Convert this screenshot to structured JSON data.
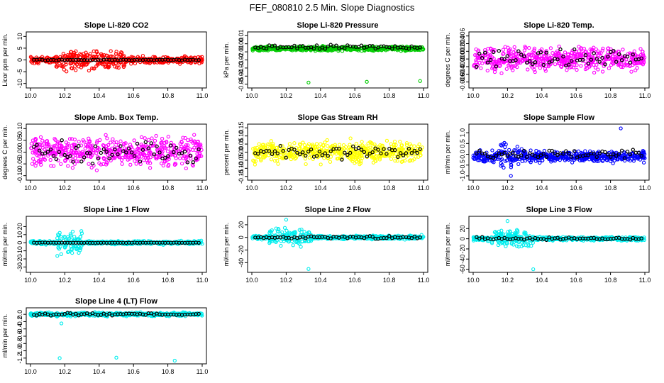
{
  "page": {
    "title": "FEF_080810  2.5 Min. Slope Diagnostics"
  },
  "chart_data": [
    {
      "type": "scatter",
      "title": "Slope Li-820 CO2",
      "ylabel": "Licor ppm per min.",
      "xlim": [
        10.0,
        11.0
      ],
      "ylim": [
        -11,
        11
      ],
      "xticks": [
        "10.0",
        "10.2",
        "10.4",
        "10.6",
        "10.8",
        "11.0"
      ],
      "yticks": [
        {
          "v": -10,
          "label": "-10"
        },
        {
          "v": -5,
          "label": "-5"
        },
        {
          "v": 0,
          "label": "0"
        },
        {
          "v": 5,
          "label": "5"
        },
        {
          "v": 10,
          "label": "10"
        }
      ],
      "series_color": "#ff0000",
      "noise": {
        "center": 0,
        "spread": 2.2,
        "burst_from": 10.15,
        "burst_to": 10.55,
        "burst_spread": 5.5
      },
      "black_center": 0,
      "black_spread": 0.3
    },
    {
      "type": "scatter",
      "title": "Slope Li-820 Pressure",
      "ylabel": "kPa per min.",
      "xlim": [
        10.0,
        11.0
      ],
      "ylim": [
        -0.052,
        0.012
      ],
      "xticks": [
        "10.0",
        "10.2",
        "10.4",
        "10.6",
        "10.8",
        "11.0"
      ],
      "yticks": [
        {
          "v": -0.05,
          "label": "-0.05"
        },
        {
          "v": -0.04,
          "label": "-0.04"
        },
        {
          "v": -0.03,
          "label": "-0.03"
        },
        {
          "v": -0.02,
          "label": "-0.02"
        },
        {
          "v": -0.01,
          "label": "-0.01"
        },
        {
          "v": 0.0,
          "label": "0.00"
        },
        {
          "v": 0.01,
          "label": "0.01"
        }
      ],
      "series_color": "#00cc00",
      "noise": {
        "center": -0.006,
        "spread": 0.004,
        "burst_from": 10.0,
        "burst_to": 10.0,
        "burst_spread": 0.004
      },
      "black_center": -0.004,
      "black_spread": 0.004,
      "outliers": [
        [
          10.33,
          -0.048
        ],
        [
          10.67,
          -0.047
        ],
        [
          10.98,
          -0.046
        ]
      ]
    },
    {
      "type": "scatter",
      "title": "Slope Li-820 Temp.",
      "ylabel": "degrees C per min.",
      "xlim": [
        10.0,
        11.0
      ],
      "ylim": [
        -0.007,
        0.0065
      ],
      "xticks": [
        "10.0",
        "10.2",
        "10.4",
        "10.6",
        "10.8",
        "11.0"
      ],
      "yticks": [
        {
          "v": -0.006,
          "label": "-0.006"
        },
        {
          "v": -0.004,
          "label": "-0.004"
        },
        {
          "v": -0.002,
          "label": "-0.002"
        },
        {
          "v": 0.0,
          "label": "0.000"
        },
        {
          "v": 0.002,
          "label": "0.002"
        },
        {
          "v": 0.004,
          "label": "0.004"
        },
        {
          "v": 0.006,
          "label": "0.006"
        }
      ],
      "series_color": "#ff00ff",
      "noise": {
        "center": 0.0,
        "spread": 0.0042,
        "burst_from": 10.0,
        "burst_to": 10.0,
        "burst_spread": 0.0042
      },
      "black_center": 0.0,
      "black_spread": 0.0035
    },
    {
      "type": "scatter",
      "title": "Slope Amb. Box Temp.",
      "ylabel": "degrees C per min.",
      "xlim": [
        10.0,
        11.0
      ],
      "ylim": [
        -0.11,
        0.11
      ],
      "xticks": [
        "10.0",
        "10.2",
        "10.4",
        "10.6",
        "10.8",
        "11.0"
      ],
      "yticks": [
        {
          "v": -0.1,
          "label": "-0.10"
        },
        {
          "v": -0.05,
          "label": "-0.05"
        },
        {
          "v": 0.0,
          "label": "0.00"
        },
        {
          "v": 0.05,
          "label": "0.05"
        },
        {
          "v": 0.1,
          "label": "0.10"
        }
      ],
      "series_color": "#ff00ff",
      "noise": {
        "center": 0.0,
        "spread": 0.085,
        "burst_from": 10.0,
        "burst_to": 10.0,
        "burst_spread": 0.085
      },
      "black_center": 0.0,
      "black_spread": 0.07
    },
    {
      "type": "scatter",
      "title": "Slope Gas Stream RH",
      "ylabel": "percent per min.",
      "xlim": [
        10.0,
        11.0
      ],
      "ylim": [
        -0.16,
        0.16
      ],
      "xticks": [
        "10.0",
        "10.2",
        "10.4",
        "10.6",
        "10.8",
        "11.0"
      ],
      "yticks": [
        {
          "v": -0.15,
          "label": "-0.15"
        },
        {
          "v": -0.1,
          "label": "-0.10"
        },
        {
          "v": -0.05,
          "label": "-0.05"
        },
        {
          "v": 0.0,
          "label": "0.00"
        },
        {
          "v": 0.05,
          "label": "0.05"
        },
        {
          "v": 0.1,
          "label": "0.10"
        },
        {
          "v": 0.15,
          "label": "0.15"
        }
      ],
      "series_color": "#ffff00",
      "noise": {
        "center": 0.0,
        "spread": 0.09,
        "burst_from": 10.0,
        "burst_to": 10.0,
        "burst_spread": 0.09
      },
      "black_center": 0.0,
      "black_spread": 0.06
    },
    {
      "type": "scatter",
      "title": "Slope Sample Flow",
      "ylabel": "ml/min per min.",
      "xlim": [
        10.0,
        11.0
      ],
      "ylim": [
        -1.1,
        1.3
      ],
      "xticks": [
        "10.0",
        "10.2",
        "10.4",
        "10.6",
        "10.8",
        "11.0"
      ],
      "yticks": [
        {
          "v": -1.0,
          "label": "-1.0"
        },
        {
          "v": -0.5,
          "label": "-0.5"
        },
        {
          "v": 0.0,
          "label": "0.0"
        },
        {
          "v": 0.5,
          "label": "0.5"
        },
        {
          "v": 1.0,
          "label": "1.0"
        }
      ],
      "series_color": "#0000ff",
      "noise": {
        "center": -0.1,
        "spread": 0.35,
        "burst_from": 10.15,
        "burst_to": 10.3,
        "burst_spread": 0.8
      },
      "black_center": 0.0,
      "black_spread": 0.3,
      "outliers": [
        [
          10.86,
          1.2
        ],
        [
          10.22,
          -1.0
        ]
      ]
    },
    {
      "type": "scatter",
      "title": "Slope Line 1 Flow",
      "ylabel": "ml/min per min.",
      "xlim": [
        10.0,
        11.0
      ],
      "ylim": [
        -34,
        30
      ],
      "xticks": [
        "10.0",
        "10.2",
        "10.4",
        "10.6",
        "10.8",
        "11.0"
      ],
      "yticks": [
        {
          "v": -30,
          "label": "-30"
        },
        {
          "v": -20,
          "label": "-20"
        },
        {
          "v": -10,
          "label": "-10"
        },
        {
          "v": 0,
          "label": "0"
        },
        {
          "v": 10,
          "label": "10"
        },
        {
          "v": 20,
          "label": "20"
        }
      ],
      "series_color": "#00eeee",
      "noise": {
        "center": 0,
        "spread": 3,
        "burst_from": 10.15,
        "burst_to": 10.3,
        "burst_spread": 22
      },
      "black_center": 0,
      "black_spread": 0.3
    },
    {
      "type": "scatter",
      "title": "Slope Line 2 Flow",
      "ylabel": "ml/min per min.",
      "xlim": [
        10.0,
        11.0
      ],
      "ylim": [
        -52,
        30
      ],
      "xticks": [
        "10.0",
        "10.2",
        "10.4",
        "10.6",
        "10.8",
        "11.0"
      ],
      "yticks": [
        {
          "v": -40,
          "label": "-40"
        },
        {
          "v": -20,
          "label": "-20"
        },
        {
          "v": 0,
          "label": "0"
        },
        {
          "v": 20,
          "label": "20"
        }
      ],
      "series_color": "#00eeee",
      "noise": {
        "center": 0,
        "spread": 4,
        "burst_from": 10.1,
        "burst_to": 10.35,
        "burst_spread": 18
      },
      "black_center": 0,
      "black_spread": 3,
      "outliers": [
        [
          10.33,
          -50
        ],
        [
          10.2,
          28
        ]
      ]
    },
    {
      "type": "scatter",
      "title": "Slope Line 3 Flow",
      "ylabel": "ml/min per min.",
      "xlim": [
        10.0,
        11.0
      ],
      "ylim": [
        -62,
        40
      ],
      "xticks": [
        "10.0",
        "10.2",
        "10.4",
        "10.6",
        "10.8",
        "11.0"
      ],
      "yticks": [
        {
          "v": -60,
          "label": "-60"
        },
        {
          "v": -40,
          "label": "-40"
        },
        {
          "v": -20,
          "label": "-20"
        },
        {
          "v": 0,
          "label": "0"
        },
        {
          "v": 20,
          "label": "20"
        }
      ],
      "series_color": "#00eeee",
      "noise": {
        "center": 0,
        "spread": 5,
        "burst_from": 10.1,
        "burst_to": 10.35,
        "burst_spread": 22
      },
      "black_center": 0,
      "black_spread": 4,
      "outliers": [
        [
          10.35,
          -60
        ],
        [
          10.2,
          35
        ]
      ]
    },
    {
      "type": "scatter",
      "title": "Slope Line 4 (LT) Flow",
      "ylabel": "ml/min per min.",
      "xlim": [
        10.0,
        11.0
      ],
      "ylim": [
        -1.3,
        0.12
      ],
      "xticks": [
        "10.0",
        "10.2",
        "10.4",
        "10.6",
        "10.8",
        "11.0"
      ],
      "yticks": [
        {
          "v": -1.2,
          "label": "-1.2"
        },
        {
          "v": -1.0,
          "label": "-1.0"
        },
        {
          "v": -0.8,
          "label": "-0.8"
        },
        {
          "v": -0.6,
          "label": "-0.6"
        },
        {
          "v": -0.4,
          "label": "-0.4"
        },
        {
          "v": -0.2,
          "label": "-0.2"
        },
        {
          "v": 0.0,
          "label": "0.0"
        }
      ],
      "series_color": "#00eeee",
      "noise": {
        "center": 0.0,
        "spread": 0.07,
        "burst_from": 10.0,
        "burst_to": 10.0,
        "burst_spread": 0.07
      },
      "black_center": 0.0,
      "black_spread": 0.05,
      "outliers": [
        [
          10.17,
          -1.2
        ],
        [
          10.5,
          -1.19
        ],
        [
          10.84,
          -1.27
        ],
        [
          10.18,
          -0.25
        ]
      ]
    }
  ]
}
